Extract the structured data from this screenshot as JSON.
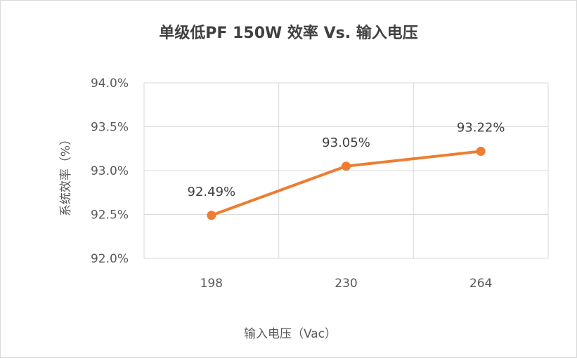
{
  "chart_data": {
    "type": "line",
    "title": "单级低PF 150W 效率 Vs. 输入电压",
    "xlabel": "输入电压（Vac）",
    "ylabel": "系统效率（%）",
    "categories": [
      "198",
      "230",
      "264"
    ],
    "series": [
      {
        "values": [
          92.49,
          93.05,
          93.22
        ],
        "data_labels": [
          "92.49%",
          "93.05%",
          "93.22%"
        ],
        "color": "#ed7d31"
      }
    ],
    "ylim": [
      92.0,
      94.0
    ],
    "y_ticks": [
      92.0,
      92.5,
      93.0,
      93.5,
      94.0
    ],
    "y_tick_labels": [
      "92.0%",
      "92.5%",
      "93.0%",
      "93.5%",
      "94.0%"
    ],
    "grid": true,
    "legend": "none",
    "colors": {
      "line": "#ed7d31",
      "grid": "#d9d9d9",
      "text": "#595959"
    }
  }
}
